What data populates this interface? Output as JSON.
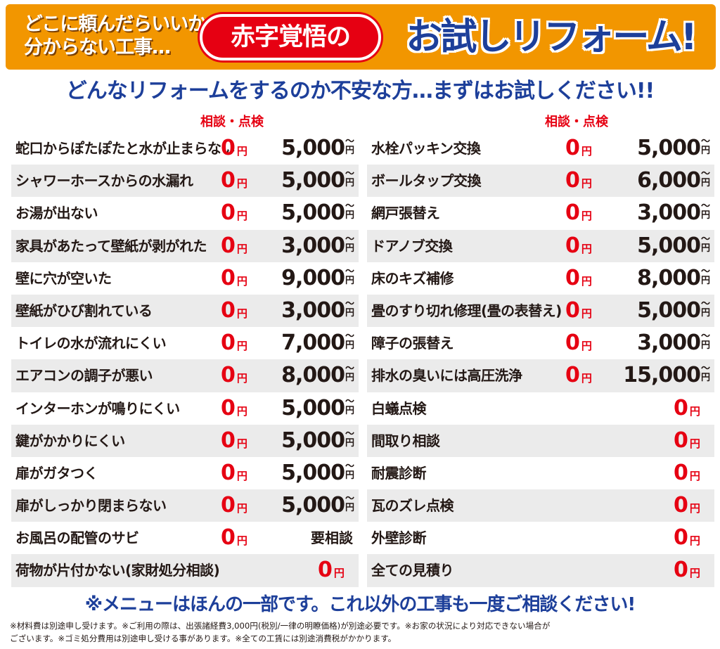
{
  "banner": {
    "lead_line1": "どこに頼んだらいいか",
    "lead_line2": "分からない工事…",
    "akaji": "赤字覚悟の",
    "title": "お試しリフォーム!"
  },
  "subhead": "どんなリフォームをするのか不安な方…まずはお試しください!!",
  "column_header": "相談・点検",
  "zero": "0",
  "yen": "円",
  "tilde": "〜",
  "left_items": [
    {
      "label": "蛇口からぽたぽたと水が止まらない",
      "price": "5,000"
    },
    {
      "label": "シャワーホースからの水漏れ",
      "price": "5,000"
    },
    {
      "label": "お湯が出ない",
      "price": "5,000"
    },
    {
      "label": "家具があたって壁紙が剥がれた",
      "price": "3,000"
    },
    {
      "label": "壁に穴が空いた",
      "price": "9,000"
    },
    {
      "label": "壁紙がひび割れている",
      "price": "3,000"
    },
    {
      "label": "トイレの水が流れにくい",
      "price": "7,000"
    },
    {
      "label": "エアコンの調子が悪い",
      "price": "8,000"
    },
    {
      "label": "インターホンが鳴りにくい",
      "price": "5,000"
    },
    {
      "label": "鍵がかかりにくい",
      "price": "5,000"
    },
    {
      "label": "扉がガタつく",
      "price": "5,000"
    },
    {
      "label": "扉がしっかり閉まらない",
      "price": "5,000"
    },
    {
      "label": "お風呂の配管のサビ",
      "consult": "要相談"
    },
    {
      "label": "荷物が片付かない(家財処分相談)",
      "only_zero": true
    }
  ],
  "right_items": [
    {
      "label": "水栓パッキン交換",
      "price": "5,000"
    },
    {
      "label": "ボールタップ交換",
      "price": "6,000"
    },
    {
      "label": "網戸張替え",
      "price": "3,000"
    },
    {
      "label": "ドアノブ交換",
      "price": "5,000"
    },
    {
      "label": "床のキズ補修",
      "price": "8,000"
    },
    {
      "label": "畳のすり切れ修理(畳の表替え)",
      "price": "5,000"
    },
    {
      "label": "障子の張替え",
      "price": "3,000"
    },
    {
      "label": "排水の臭いには高圧洗浄",
      "price": "15,000"
    },
    {
      "label": "白蟻点検",
      "only_zero": true
    },
    {
      "label": "間取り相談",
      "only_zero": true
    },
    {
      "label": "耐震診断",
      "only_zero": true
    },
    {
      "label": "瓦のズレ点検",
      "only_zero": true
    },
    {
      "label": "外壁診断",
      "only_zero": true
    },
    {
      "label": "全ての見積り",
      "only_zero": true
    }
  ],
  "footer": {
    "message": "※メニューはほんの一部です。これ以外の工事も一度ご相談ください!",
    "note_line1": "※材料費は別途申し受けます。※ご利用の際は、出張諸経費3,000円(税別/一律の明瞭価格)が別途必要です。※お家の状況により対応できない場合が",
    "note_line2": "ございます。※ゴミ処分費用は別途申し受ける事があります。※全ての工賃には別途消費税がかかります。"
  },
  "colors": {
    "banner_orange": "#f29600",
    "accent_red": "#e60012",
    "title_blue": "#1d3f9a",
    "row_shade": "#ebebeb"
  }
}
